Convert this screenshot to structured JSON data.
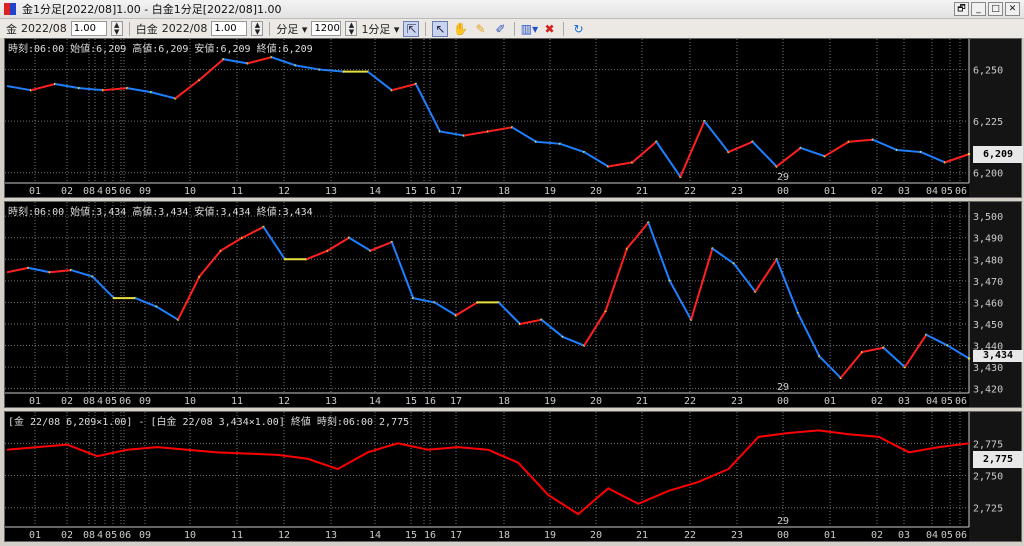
{
  "window": {
    "title": "金1分足[2022/08]1.00 - 白金1分足[2022/08]1.00",
    "buttons": [
      "🗗",
      "_",
      "□",
      "✕"
    ]
  },
  "toolbar": {
    "sym1": "金",
    "month1": "2022/08",
    "mult1": "1.00",
    "sym2": "白金",
    "month2": "2022/08",
    "mult2": "1.00",
    "period_unit": "分足 ▾",
    "bars": "1200",
    "timeframe": "1分足 ▾",
    "tools": [
      "zoom-tool",
      "cursor-tool",
      "hand-tool",
      "pencil-tool",
      "draw-tool",
      "indicator-tool",
      "delete-tool",
      "refresh-tool"
    ]
  },
  "x_labels": [
    "01",
    "02",
    "08",
    "4",
    "05",
    "06",
    "09",
    "10",
    "11",
    "12",
    "13",
    "14",
    "15",
    "16",
    "17",
    "18",
    "19",
    "20",
    "21",
    "22",
    "23",
    "00",
    "01",
    "02",
    "03",
    "04",
    "05",
    "06"
  ],
  "marker": "29",
  "chart_data": [
    {
      "type": "line",
      "name": "金",
      "info": "時刻:06:00 始値:6,209 高値:6,209 安値:6,209 終値:6,209",
      "current": "6,209",
      "ylim": [
        6.195,
        6.259
      ],
      "ticks": [
        "6,250",
        "6,225",
        "6,200"
      ],
      "tick_values": [
        6.25,
        6.225,
        6.2
      ],
      "values": [
        6.242,
        6.24,
        6.243,
        6.241,
        6.24,
        6.241,
        6.239,
        6.236,
        6.245,
        6.255,
        6.253,
        6.256,
        6.252,
        6.25,
        6.249,
        6.249,
        6.24,
        6.243,
        6.22,
        6.218,
        6.22,
        6.222,
        6.215,
        6.214,
        6.21,
        6.203,
        6.205,
        6.215,
        6.198,
        6.225,
        6.21,
        6.215,
        6.203,
        6.212,
        6.208,
        6.215,
        6.216,
        6.211,
        6.21,
        6.205,
        6.209
      ]
    },
    {
      "type": "line",
      "name": "白金",
      "info": "時刻:06:00 始値:3,434 高値:3,434 安値:3,434 終値:3,434",
      "current": "3,434",
      "ylim": [
        3.418,
        3.501
      ],
      "ticks": [
        "3,500",
        "3,490",
        "3,480",
        "3,470",
        "3,460",
        "3,450",
        "3,440",
        "3,430",
        "3,420"
      ],
      "tick_values": [
        3.5,
        3.49,
        3.48,
        3.47,
        3.46,
        3.45,
        3.44,
        3.43,
        3.42
      ],
      "values": [
        3.474,
        3.476,
        3.474,
        3.475,
        3.472,
        3.462,
        3.462,
        3.458,
        3.452,
        3.472,
        3.484,
        3.49,
        3.495,
        3.48,
        3.48,
        3.484,
        3.49,
        3.484,
        3.488,
        3.462,
        3.46,
        3.454,
        3.46,
        3.46,
        3.45,
        3.452,
        3.444,
        3.44,
        3.456,
        3.485,
        3.497,
        3.47,
        3.452,
        3.485,
        3.478,
        3.465,
        3.48,
        3.455,
        3.435,
        3.425,
        3.437,
        3.439,
        3.43,
        3.445,
        3.44,
        3.434
      ]
    },
    {
      "type": "line",
      "name": "比率",
      "info": "[金 22/08 6,209×1.00] - [白金 22/08 3,434×1.00] 終値 時刻:06:00 2,775",
      "current": "2,775",
      "color": "#ff0000",
      "ylim": [
        2.71,
        2.79
      ],
      "ticks": [
        "2,775",
        "2,750",
        "2,725"
      ],
      "tick_values": [
        2.775,
        2.75,
        2.725
      ],
      "values": [
        2.77,
        2.772,
        2.774,
        2.765,
        2.77,
        2.772,
        2.77,
        2.768,
        2.767,
        2.766,
        2.763,
        2.755,
        2.768,
        2.775,
        2.77,
        2.772,
        2.77,
        2.76,
        2.735,
        2.72,
        2.74,
        2.728,
        2.738,
        2.745,
        2.755,
        2.78,
        2.783,
        2.785,
        2.782,
        2.78,
        2.768,
        2.772,
        2.775
      ]
    }
  ],
  "colors": {
    "up": "#ff2020",
    "down": "#1e7fff",
    "flat": "#e8e040",
    "ratio": "#ff0000"
  }
}
